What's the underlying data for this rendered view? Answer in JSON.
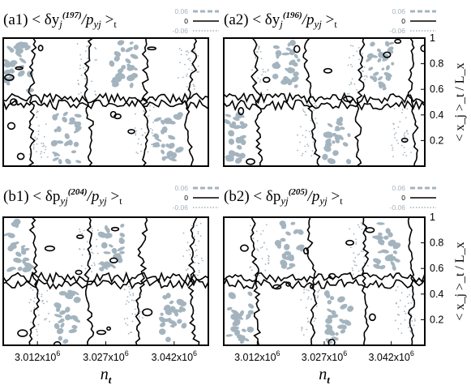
{
  "chart_data": [
    {
      "type": "heatmap",
      "panel": "a1",
      "title": "(a1)  < δy_j^(197)/p_yj >_t",
      "title_parts": {
        "label": "(a1)",
        "lhs": "< δy",
        "sub": "j",
        "sup": "(197)",
        "mid": "/p",
        "sub2": "yj",
        "rhs": " >",
        "tsub": "t"
      },
      "legend": [
        {
          "label": "0.06",
          "style": "dashed",
          "color": "#a4b4bf"
        },
        {
          "label": "0",
          "style": "solid",
          "color": "#000000"
        },
        {
          "label": "-0.06",
          "style": "dotted",
          "color": "#a4b4bf"
        }
      ],
      "contour_levels": [
        0.06,
        0,
        -0.06
      ],
      "xlim": [
        3004500.0,
        3049500.0
      ],
      "ylim": [
        0,
        1
      ]
    },
    {
      "type": "heatmap",
      "panel": "a2",
      "title": "(a2)  < δy_j^(196)/p_yj >_t",
      "title_parts": {
        "label": "(a2)",
        "lhs": "< δy",
        "sub": "j",
        "sup": "(196)",
        "mid": "/p",
        "sub2": "yj",
        "rhs": " >",
        "tsub": "t"
      },
      "legend": [
        {
          "label": "0.06",
          "style": "dashed",
          "color": "#a4b4bf"
        },
        {
          "label": "0",
          "style": "solid",
          "color": "#000000"
        },
        {
          "label": "-0.06",
          "style": "dotted",
          "color": "#a4b4bf"
        }
      ],
      "contour_levels": [
        0.06,
        0,
        -0.06
      ],
      "xlim": [
        3004500.0,
        3049500.0
      ],
      "ylim": [
        0,
        1
      ]
    },
    {
      "type": "heatmap",
      "panel": "b1",
      "title": "(b1)  < δp_yj^(204)/p_yj >_t",
      "title_parts": {
        "label": "(b1)",
        "lhs": "< δp",
        "sub": "yj",
        "sup": "(204)",
        "mid": "/p",
        "sub2": "yj",
        "rhs": " >",
        "tsub": "t"
      },
      "legend": [
        {
          "label": "0.06",
          "style": "dashed",
          "color": "#a4b4bf"
        },
        {
          "label": "0",
          "style": "solid",
          "color": "#000000"
        },
        {
          "label": "-0.06",
          "style": "dotted",
          "color": "#a4b4bf"
        }
      ],
      "contour_levels": [
        0.06,
        0,
        -0.06
      ],
      "xlim": [
        3004500.0,
        3049500.0
      ],
      "ylim": [
        0,
        1
      ]
    },
    {
      "type": "heatmap",
      "panel": "b2",
      "title": "(b2)  < δp_yj^(205)/p_yj >_t",
      "title_parts": {
        "label": "(b2)",
        "lhs": "< δp",
        "sub": "yj",
        "sup": "(205)",
        "mid": "/p",
        "sub2": "yj",
        "rhs": " >",
        "tsub": "t"
      },
      "legend": [
        {
          "label": "0.06",
          "style": "dashed",
          "color": "#a4b4bf"
        },
        {
          "label": "0",
          "style": "solid",
          "color": "#000000"
        },
        {
          "label": "-0.06",
          "style": "dotted",
          "color": "#a4b4bf"
        }
      ],
      "contour_levels": [
        0.06,
        0,
        -0.06
      ],
      "xlim": [
        3004500.0,
        3049500.0
      ],
      "ylim": [
        0,
        1
      ]
    }
  ],
  "axes": {
    "xlabel": "n_t",
    "xlabel_parts": {
      "main": "n",
      "sub": "t"
    },
    "x_ticks": [
      {
        "value": 3012000.0,
        "label": "3.012x10",
        "exp": "6"
      },
      {
        "value": 3027000.0,
        "label": "3.027x10",
        "exp": "6"
      },
      {
        "value": 3042000.0,
        "label": "3.042x10",
        "exp": "6"
      }
    ],
    "ylabel": "< x_j >_t / L_x",
    "y_ticks": [
      {
        "value": 0.2,
        "label": "0.2"
      },
      {
        "value": 0.4,
        "label": "0.4"
      },
      {
        "value": 0.6,
        "label": "0.6"
      },
      {
        "value": 0.8,
        "label": "0.8"
      },
      {
        "value": 1.0,
        "label": "1"
      }
    ]
  },
  "colors": {
    "positive": "#a4b4bf",
    "zero": "#000000",
    "negative": "#a4b4bf"
  }
}
